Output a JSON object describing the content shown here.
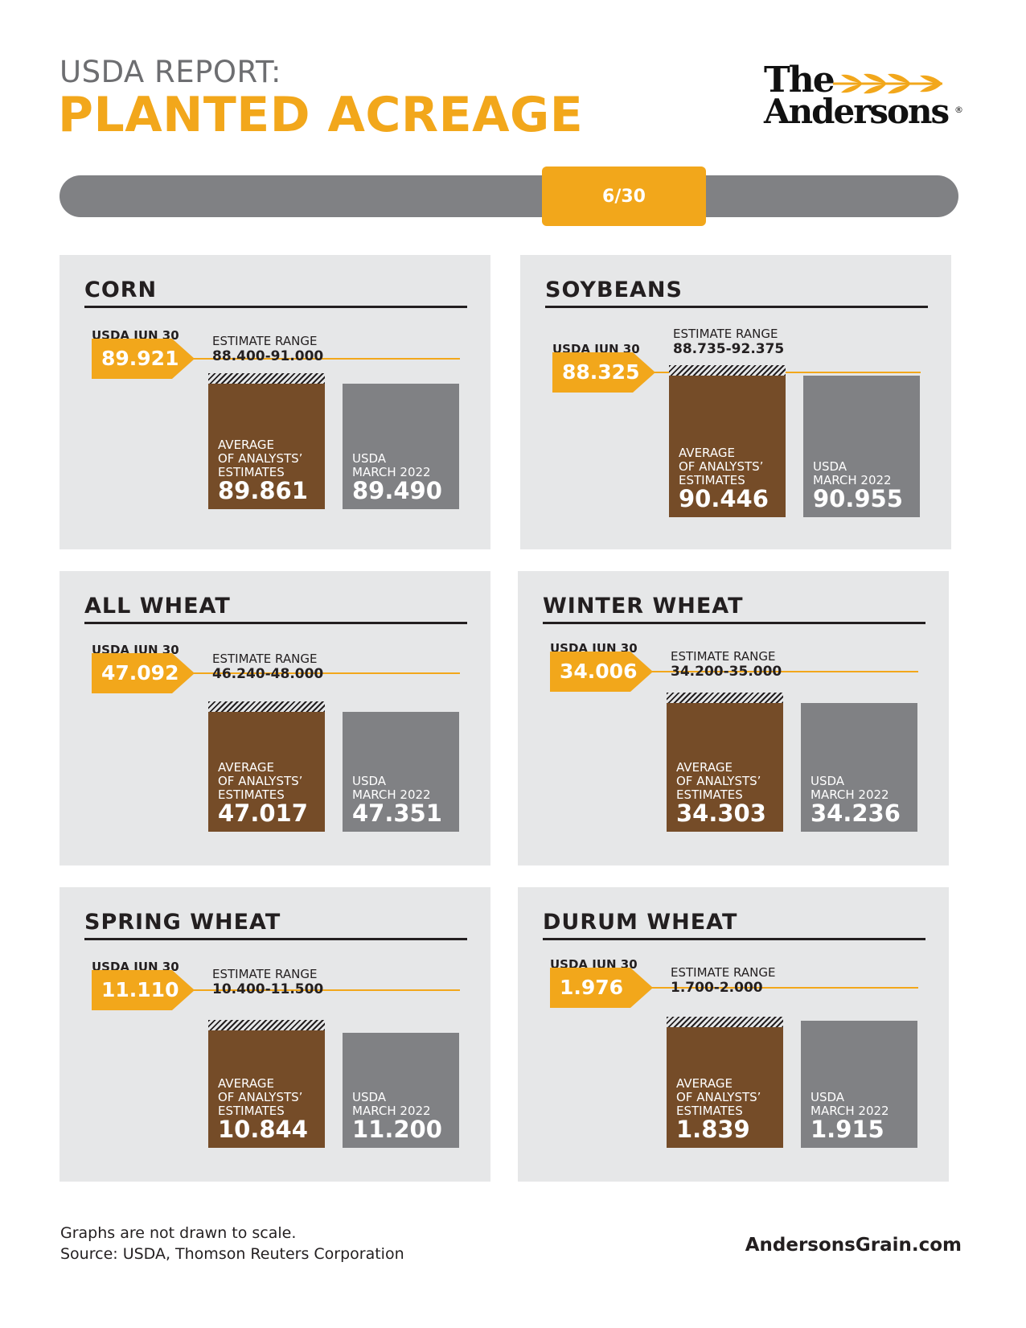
{
  "header": {
    "pre_title": "USDA REPORT:",
    "title": "PLANTED ACREAGE"
  },
  "logo": {
    "line1": "The",
    "line2": "Andersons",
    "reg": "®"
  },
  "date": "6/30",
  "labels": {
    "usda": "USDA JUN 30",
    "range": "ESTIMATE RANGE",
    "avg": [
      "AVERAGE",
      "OF ANALYSTS’",
      "ESTIMATES"
    ],
    "march": [
      "USDA",
      "MARCH 2022"
    ]
  },
  "colors": {
    "orange": "#f2a71b",
    "brown": "#754c28",
    "gray": "#808184",
    "panel": "#e6e7e8"
  },
  "chart_data": [
    {
      "type": "bar",
      "title": "CORN",
      "usda_jun30": 89.921,
      "estimate_range": [
        88.4,
        91.0
      ],
      "estimate_range_text": "88.400-91.000",
      "avg_estimate": 89.861,
      "usda_march_2022": 89.49
    },
    {
      "type": "bar",
      "title": "SOYBEANS",
      "usda_jun30": 88.325,
      "estimate_range": [
        88.735,
        92.375
      ],
      "estimate_range_text": "88.735-92.375",
      "avg_estimate": 90.446,
      "usda_march_2022": 90.955
    },
    {
      "type": "bar",
      "title": "ALL WHEAT",
      "usda_jun30": 47.092,
      "estimate_range": [
        46.24,
        48.0
      ],
      "estimate_range_text": "46.240-48.000",
      "avg_estimate": 47.017,
      "usda_march_2022": 47.351
    },
    {
      "type": "bar",
      "title": "WINTER WHEAT",
      "usda_jun30": 34.006,
      "estimate_range": [
        34.2,
        35.0
      ],
      "estimate_range_text": "34.200-35.000",
      "avg_estimate": 34.303,
      "usda_march_2022": 34.236
    },
    {
      "type": "bar",
      "title": "SPRING WHEAT",
      "usda_jun30": 11.11,
      "estimate_range": [
        10.4,
        11.5
      ],
      "estimate_range_text": "10.400-11.500",
      "avg_estimate": 10.844,
      "usda_march_2022": 11.2
    },
    {
      "type": "bar",
      "title": "DURUM WHEAT",
      "usda_jun30": 1.976,
      "estimate_range": [
        1.7,
        2.0
      ],
      "estimate_range_text": "1.700-2.000",
      "avg_estimate": 1.839,
      "usda_march_2022": 1.915
    }
  ],
  "footer": {
    "note": "Graphs are not drawn to scale.",
    "source": "Source: USDA, Thomson Reuters Corporation",
    "site": "AndersonsGrain.com"
  }
}
